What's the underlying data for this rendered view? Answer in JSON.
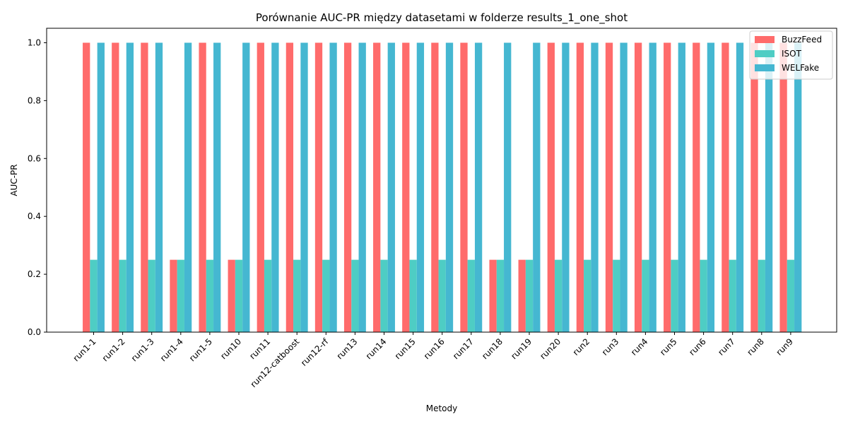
{
  "chart_data": {
    "type": "bar",
    "title": "Porównanie AUC-PR między datasetami w folderze results_1_one_shot",
    "xlabel": "Metody",
    "ylabel": "AUC-PR",
    "ylim": [
      0,
      1.05
    ],
    "yticks": [
      "0.0",
      "0.2",
      "0.4",
      "0.6",
      "0.8",
      "1.0"
    ],
    "grid": false,
    "legend_position": "top-right",
    "categories": [
      "run1-1",
      "run1-2",
      "run1-3",
      "run1-4",
      "run1-5",
      "run10",
      "run11",
      "run12-catboost",
      "run12-rf",
      "run13",
      "run14",
      "run15",
      "run16",
      "run17",
      "run18",
      "run19",
      "run20",
      "run2",
      "run3",
      "run4",
      "run5",
      "run6",
      "run7",
      "run8",
      "run9"
    ],
    "series": [
      {
        "name": "BuzzFeed",
        "color": "#ff6b6b",
        "values": [
          1,
          1,
          1,
          0.25,
          1,
          0.25,
          1,
          1,
          1,
          1,
          1,
          1,
          1,
          1,
          0.25,
          0.25,
          1,
          1,
          1,
          1,
          1,
          1,
          1,
          1,
          1
        ]
      },
      {
        "name": "ISOT",
        "color": "#4ecdc4",
        "values": [
          0.25,
          0.25,
          0.25,
          0.25,
          0.25,
          0.25,
          0.25,
          0.25,
          0.25,
          0.25,
          0.25,
          0.25,
          0.25,
          0.25,
          0.25,
          0.25,
          0.25,
          0.25,
          0.25,
          0.25,
          0.25,
          0.25,
          0.25,
          0.25,
          0.25
        ]
      },
      {
        "name": "WELFake",
        "color": "#45b7d1",
        "values": [
          1,
          1,
          1,
          1,
          1,
          1,
          1,
          1,
          1,
          1,
          1,
          1,
          1,
          1,
          1,
          1,
          1,
          1,
          1,
          1,
          1,
          1,
          1,
          1,
          1
        ]
      }
    ]
  }
}
